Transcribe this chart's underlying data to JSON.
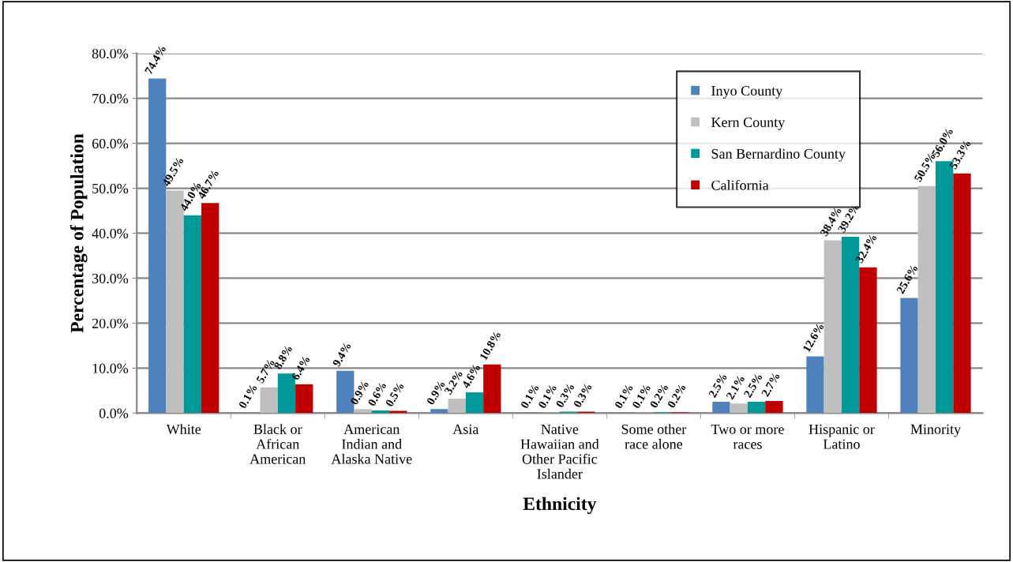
{
  "chart_data": {
    "type": "bar",
    "xlabel": "Ethnicity",
    "ylabel": "Percentage of Population",
    "categories": [
      "White",
      "Black or\nAfrican\nAmerican",
      "American\nIndian and\nAlaska Native",
      "Asia",
      "Native\nHawaiian and\nOther Pacific\nIslander",
      "Some other\nrace alone",
      "Two or more\nraces",
      "Hispanic or\nLatino",
      "Minority"
    ],
    "series": [
      {
        "name": "Inyo County",
        "color": "#4f81bd",
        "values": [
          74.4,
          0.1,
          9.4,
          0.9,
          0.1,
          0.1,
          2.5,
          12.6,
          25.6
        ],
        "value_labels": [
          "74.4%",
          "0.1%",
          "9.4%",
          "0.9%",
          "0.1%",
          "0.1%",
          "2.5%",
          "12.6%",
          "25.6%"
        ]
      },
      {
        "name": "Kern County",
        "color": "#bfbfbf",
        "values": [
          49.5,
          5.7,
          0.9,
          3.2,
          0.1,
          0.1,
          2.1,
          38.4,
          50.5
        ],
        "value_labels": [
          "49.5%",
          "5.7%",
          "0.9%",
          "3.2%",
          "0.1%",
          "0.1%",
          "2.1%",
          "38.4%",
          "50.5%"
        ]
      },
      {
        "name": "San Bernardino County",
        "color": "#009999",
        "values": [
          44.0,
          8.8,
          0.6,
          4.6,
          0.3,
          0.2,
          2.5,
          39.2,
          56.0
        ],
        "value_labels": [
          "44.0%",
          "8.8%",
          "0.6%",
          "4.6%",
          "0.3%",
          "0.2%",
          "2.5%",
          "39.2%",
          "56.0%"
        ]
      },
      {
        "name": "California",
        "color": "#c00000",
        "values": [
          46.7,
          6.4,
          0.5,
          10.8,
          0.3,
          0.2,
          2.7,
          32.4,
          53.3
        ],
        "value_labels": [
          "46.7%",
          "6.4%",
          "0.5%",
          "10.8%",
          "0.3%",
          "0.2%",
          "2.7%",
          "32.4%",
          "53.3%"
        ]
      }
    ],
    "ylim": [
      0,
      80
    ],
    "yticks": [
      {
        "value": 0,
        "label": "0.0%"
      },
      {
        "value": 10,
        "label": "10.0%"
      },
      {
        "value": 20,
        "label": "20.0%"
      },
      {
        "value": 30,
        "label": "30.0%"
      },
      {
        "value": 40,
        "label": "40.0%"
      },
      {
        "value": 50,
        "label": "50.0%"
      },
      {
        "value": 60,
        "label": "60.0%"
      },
      {
        "value": 70,
        "label": "70.0%"
      },
      {
        "value": 80,
        "label": "80.0%"
      }
    ],
    "grid": "y",
    "legend": "top right"
  }
}
